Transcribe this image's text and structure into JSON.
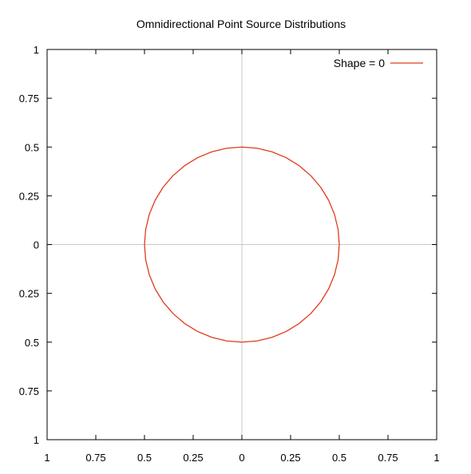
{
  "chart_data": {
    "type": "line",
    "title": "Omnidirectional Point Source Distributions",
    "xlabel": "",
    "ylabel": "",
    "xlim": [
      -1,
      1
    ],
    "ylim": [
      -1,
      1
    ],
    "x_ticks": [
      -1,
      -0.75,
      -0.5,
      -0.25,
      0,
      0.25,
      0.5,
      0.75,
      1
    ],
    "y_ticks": [
      1,
      0.75,
      0.5,
      0.25,
      0,
      -0.25,
      -0.5,
      -0.75,
      -1
    ],
    "x_tick_labels": [
      "1",
      "0.75",
      "0.5",
      "0.25",
      "0",
      "0.25",
      "0.5",
      "0.75",
      "1"
    ],
    "y_tick_labels": [
      "1",
      "0.75",
      "0.5",
      "0.25",
      "0",
      "0.25",
      "0.5",
      "0.75",
      "1"
    ],
    "grid": false,
    "zero_axes": true,
    "legend_position": "top-right",
    "series": [
      {
        "name": "Shape = 0",
        "color": "#e03a1e",
        "shape": "polar circle",
        "radius": 0.5,
        "samples": 40
      }
    ]
  }
}
